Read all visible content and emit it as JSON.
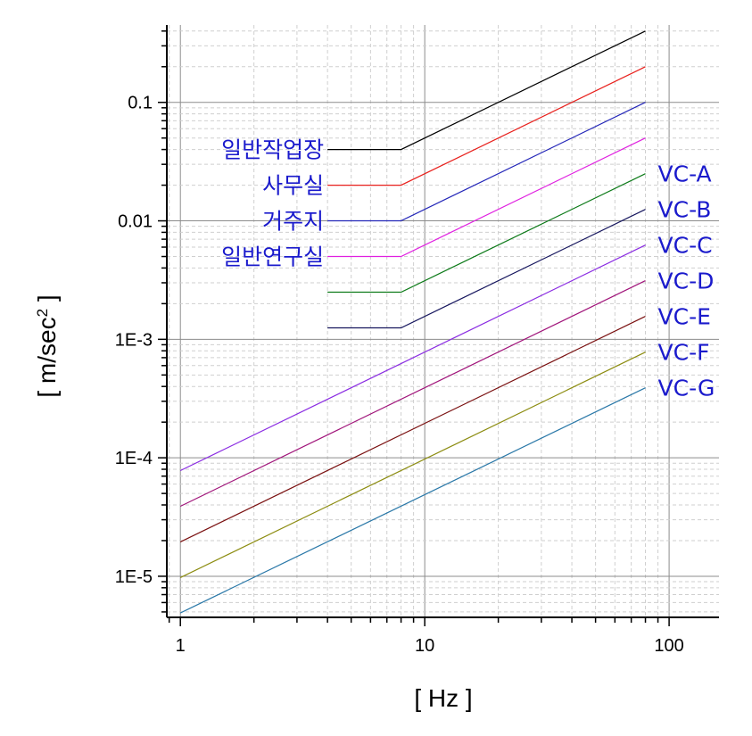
{
  "chart_data": {
    "type": "line",
    "title": "",
    "xlabel": "[ Hz ]",
    "ylabel": "[ m/sec",
    "ylabel_sup": "2",
    "ylabel_end": " ]",
    "x_scale": "log",
    "y_scale": "log",
    "xlim": [
      0.88,
      160
    ],
    "ylim": [
      4.5e-06,
      0.45
    ],
    "grid": true,
    "x_ticks": [
      {
        "value": 1,
        "label": "1"
      },
      {
        "value": 10,
        "label": "10"
      },
      {
        "value": 100,
        "label": "100"
      }
    ],
    "y_ticks": [
      {
        "value": 1e-05,
        "label": "1E-5"
      },
      {
        "value": 0.0001,
        "label": "1E-4"
      },
      {
        "value": 0.001,
        "label": "1E-3"
      },
      {
        "value": 0.01,
        "label": "0.01"
      },
      {
        "value": 0.1,
        "label": "0.1"
      }
    ],
    "series": [
      {
        "name": "일반작업장",
        "color": "#000000",
        "label_color": "#1a1acc",
        "label_side": "left",
        "points": [
          [
            4,
            0.04
          ],
          [
            8,
            0.04
          ],
          [
            80,
            0.4
          ]
        ]
      },
      {
        "name": "사무실",
        "color": "#e8201c",
        "label_color": "#1a1acc",
        "label_side": "left",
        "points": [
          [
            4,
            0.02
          ],
          [
            8,
            0.02
          ],
          [
            80,
            0.2
          ]
        ]
      },
      {
        "name": "거주지",
        "color": "#2326b8",
        "label_color": "#1a1acc",
        "label_side": "left",
        "points": [
          [
            4,
            0.01
          ],
          [
            8,
            0.01
          ],
          [
            80,
            0.1
          ]
        ]
      },
      {
        "name": "일반연구실",
        "color": "#e020e0",
        "label_color": "#1a1acc",
        "label_side": "left",
        "points": [
          [
            4,
            0.005
          ],
          [
            8,
            0.005
          ],
          [
            80,
            0.05
          ]
        ]
      },
      {
        "name": "VC-A",
        "color": "#0c7a18",
        "label_color": "#1a1acc",
        "label_side": "right",
        "points": [
          [
            4,
            0.0025
          ],
          [
            8,
            0.0025
          ],
          [
            80,
            0.025
          ]
        ]
      },
      {
        "name": "VC-B",
        "color": "#16165e",
        "label_color": "#1a1acc",
        "label_side": "right",
        "points": [
          [
            4,
            0.00125
          ],
          [
            8,
            0.00125
          ],
          [
            80,
            0.0125
          ]
        ]
      },
      {
        "name": "VC-C",
        "color": "#8a2be2",
        "label_color": "#1a1acc",
        "label_side": "right",
        "points": [
          [
            1,
            7.8e-05
          ],
          [
            80,
            0.00625
          ]
        ]
      },
      {
        "name": "VC-D",
        "color": "#a0147a",
        "label_color": "#1a1acc",
        "label_side": "right",
        "points": [
          [
            1,
            3.9e-05
          ],
          [
            80,
            0.003125
          ]
        ]
      },
      {
        "name": "VC-E",
        "color": "#7a1010",
        "label_color": "#1a1acc",
        "label_side": "right",
        "points": [
          [
            1,
            1.95e-05
          ],
          [
            80,
            0.0015625
          ]
        ]
      },
      {
        "name": "VC-F",
        "color": "#8c8c10",
        "label_color": "#1a1acc",
        "label_side": "right",
        "points": [
          [
            1,
            9.75e-06
          ],
          [
            80,
            0.00078
          ]
        ]
      },
      {
        "name": "VC-G",
        "color": "#2a78a8",
        "label_color": "#1a1acc",
        "label_side": "right",
        "points": [
          [
            1,
            4.9e-06
          ],
          [
            80,
            0.00039
          ]
        ]
      }
    ]
  }
}
